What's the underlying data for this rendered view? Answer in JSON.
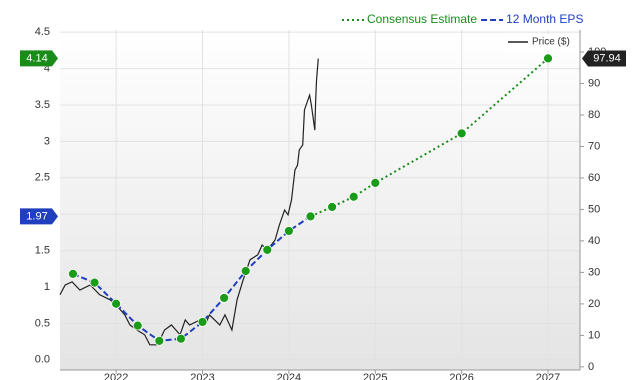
{
  "chart_data": {
    "type": "line",
    "xlim": [
      2021.35,
      2027.37
    ],
    "xticks": [
      2022,
      2023,
      2024,
      2025,
      2026,
      2027
    ],
    "ylim": [
      -0.14,
      4.53
    ],
    "yticks": [
      {
        "value": 0,
        "label": "0.0"
      },
      0.5,
      1,
      1.5,
      2,
      2.5,
      3,
      3.5,
      4,
      4.5
    ],
    "y2lim": [
      -1,
      107
    ],
    "y2ticks": [
      0,
      10,
      20,
      30,
      40,
      50,
      60,
      70,
      80,
      90,
      100
    ],
    "grid": true,
    "series": [
      {
        "name": "Consensus Estimate",
        "color": "#1a8c1a",
        "dash": "dotted",
        "markers": true,
        "x": [
          2024.25,
          2024.5,
          2024.75,
          2025.0,
          2026.0,
          2027.0
        ],
        "values": [
          1.97,
          2.1,
          2.24,
          2.43,
          3.11,
          4.14
        ]
      },
      {
        "name": "12 Month EPS",
        "color": "#1f3fbf",
        "dash": "dashed",
        "markers": true,
        "x": [
          2021.5,
          2021.75,
          2022.0,
          2022.25,
          2022.5,
          2022.75,
          2023.0,
          2023.25,
          2023.5,
          2023.75,
          2024.0,
          2024.25
        ],
        "values": [
          1.18,
          1.06,
          0.77,
          0.47,
          0.26,
          0.29,
          0.52,
          0.85,
          1.22,
          1.51,
          1.77,
          1.97
        ]
      },
      {
        "name": "Price ($)",
        "color": "#222222",
        "dash": "solid",
        "markers": false,
        "axis": "y2",
        "x": [
          2021.35,
          2021.41,
          2021.49,
          2021.58,
          2021.7,
          2021.81,
          2021.93,
          2022.0,
          2022.1,
          2022.16,
          2022.24,
          2022.33,
          2022.39,
          2022.48,
          2022.56,
          2022.64,
          2022.74,
          2022.8,
          2022.85,
          2022.97,
          2023.03,
          2023.08,
          2023.14,
          2023.2,
          2023.26,
          2023.34,
          2023.4,
          2023.47,
          2023.55,
          2023.64,
          2023.69,
          2023.75,
          2023.84,
          2023.89,
          2023.95,
          2023.99,
          2024.03,
          2024.07,
          2024.1,
          2024.12,
          2024.16,
          2024.18,
          2024.22,
          2024.24,
          2024.26,
          2024.3,
          2024.31,
          2024.32,
          2024.34
        ],
        "values": [
          22.9,
          26.0,
          27.0,
          24.4,
          26.0,
          22.9,
          21.3,
          19.7,
          16.5,
          13.3,
          11.7,
          10.2,
          7.0,
          7.0,
          11.7,
          13.3,
          10.2,
          14.9,
          13.3,
          14.9,
          13.3,
          16.5,
          14.9,
          13.3,
          16.5,
          11.7,
          21.3,
          27.6,
          34.0,
          35.6,
          38.7,
          37.1,
          40.3,
          45.1,
          49.8,
          48.3,
          53.0,
          62.5,
          64.1,
          68.9,
          70.5,
          81.6,
          84.8,
          86.3,
          83.2,
          75.2,
          84.8,
          91.1,
          97.94
        ]
      }
    ],
    "marker_color": "#1a9c1a"
  }
}
